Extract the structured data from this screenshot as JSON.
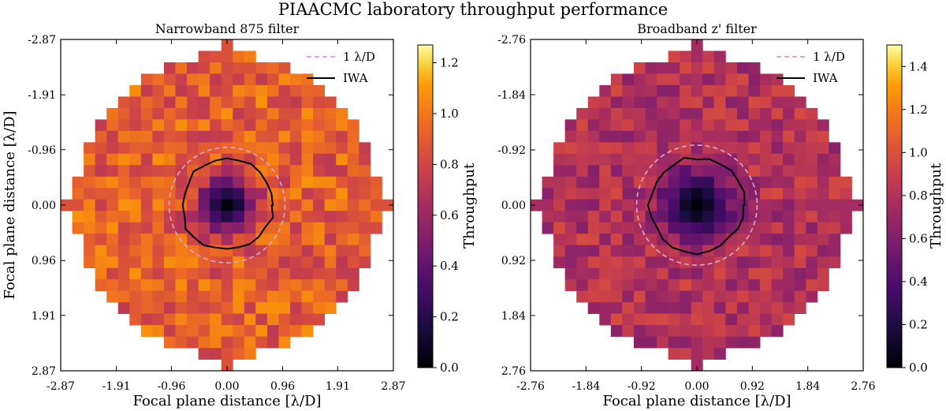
{
  "figure": {
    "title": "PIAACMC laboratory throughput performance",
    "colormap": "inferno",
    "colors": {
      "iwa_contour": "#000000",
      "lambda_circle": "#d8a7d6"
    }
  },
  "chart_data": [
    {
      "type": "heatmap",
      "title": "Narrowband 875 filter",
      "xlabel": "Focal plane distance [λ/D]",
      "ylabel": "Focal plane distance [λ/D]",
      "xticks": [
        "-2.87",
        "-1.91",
        "-0.96",
        "0.00",
        "0.96",
        "1.91",
        "2.87"
      ],
      "yticks": [
        "-2.87",
        "-1.91",
        "-0.96",
        "0.00",
        "0.96",
        "1.91",
        "2.87"
      ],
      "xlim": [
        -2.87,
        2.87
      ],
      "ylim": [
        2.87,
        -2.87
      ],
      "grid_size": 29,
      "pupil_radius_lambda_d": 2.63,
      "colorbar": {
        "label": "Throughput",
        "range": [
          0.0,
          1.27
        ],
        "ticks": [
          "0.0",
          "0.2",
          "0.4",
          "0.6",
          "0.8",
          "1.0",
          "1.2"
        ]
      },
      "background_mean_throughput": 0.9,
      "core_min_throughput": 0.02,
      "core_radius_lambda_d": 0.6,
      "legend": {
        "position": "top-right",
        "entries": [
          {
            "label": "1 λ/D",
            "style": "dashed",
            "color": "#d8a7d6",
            "radius_lambda_d": 1.0
          },
          {
            "label": "IWA",
            "style": "solid",
            "color": "#000000",
            "radius_lambda_d": 0.79
          }
        ]
      }
    },
    {
      "type": "heatmap",
      "title": "Broadband z' filter",
      "xlabel": "Focal plane distance [λ/D]",
      "ylabel": "",
      "xticks": [
        "-2.76",
        "-1.84",
        "-0.92",
        "0.00",
        "0.92",
        "1.84",
        "2.76"
      ],
      "yticks": [
        "-2.76",
        "-1.84",
        "-0.92",
        "0.00",
        "0.92",
        "1.84",
        "2.76"
      ],
      "xlim": [
        -2.76,
        2.76
      ],
      "ylim": [
        2.76,
        -2.76
      ],
      "grid_size": 29,
      "pupil_radius_lambda_d": 2.53,
      "colorbar": {
        "label": "Throughput",
        "range": [
          0.0,
          1.5
        ],
        "ticks": [
          "0.0",
          "0.2",
          "0.4",
          "0.6",
          "0.8",
          "1.0",
          "1.2",
          "1.4"
        ]
      },
      "background_mean_throughput": 0.8,
      "core_min_throughput": 0.02,
      "core_radius_lambda_d": 0.7,
      "legend": {
        "position": "top-right",
        "entries": [
          {
            "label": "1 λ/D",
            "style": "dashed",
            "color": "#d8a7d6",
            "radius_lambda_d": 1.0
          },
          {
            "label": "IWA",
            "style": "solid",
            "color": "#000000",
            "radius_lambda_d": 0.79
          }
        ]
      }
    }
  ]
}
